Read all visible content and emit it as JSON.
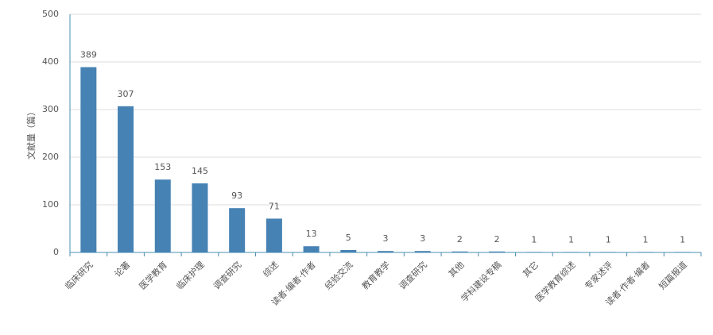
{
  "chart_data": {
    "type": "bar",
    "y_label": "文献量（篇）",
    "categories": [
      "临床研究",
      "论著",
      "医学教育",
      "临床护理",
      "调查研究",
      "综述",
      "读者·编者·作者",
      "经验交流",
      "教育教学",
      "调查研究",
      "其他",
      "学科建设专稿",
      "其它",
      "医学教育综述",
      "专家述评",
      "读者·作者·编者",
      "短篇报道"
    ],
    "values": [
      389,
      307,
      153,
      145,
      93,
      71,
      13,
      5,
      3,
      3,
      2,
      2,
      1,
      1,
      1,
      1,
      1
    ],
    "color": "#4682b4",
    "ylim": [
      0,
      500
    ],
    "yticks": [
      0,
      100,
      200,
      300,
      400,
      500
    ],
    "grid": true
  }
}
